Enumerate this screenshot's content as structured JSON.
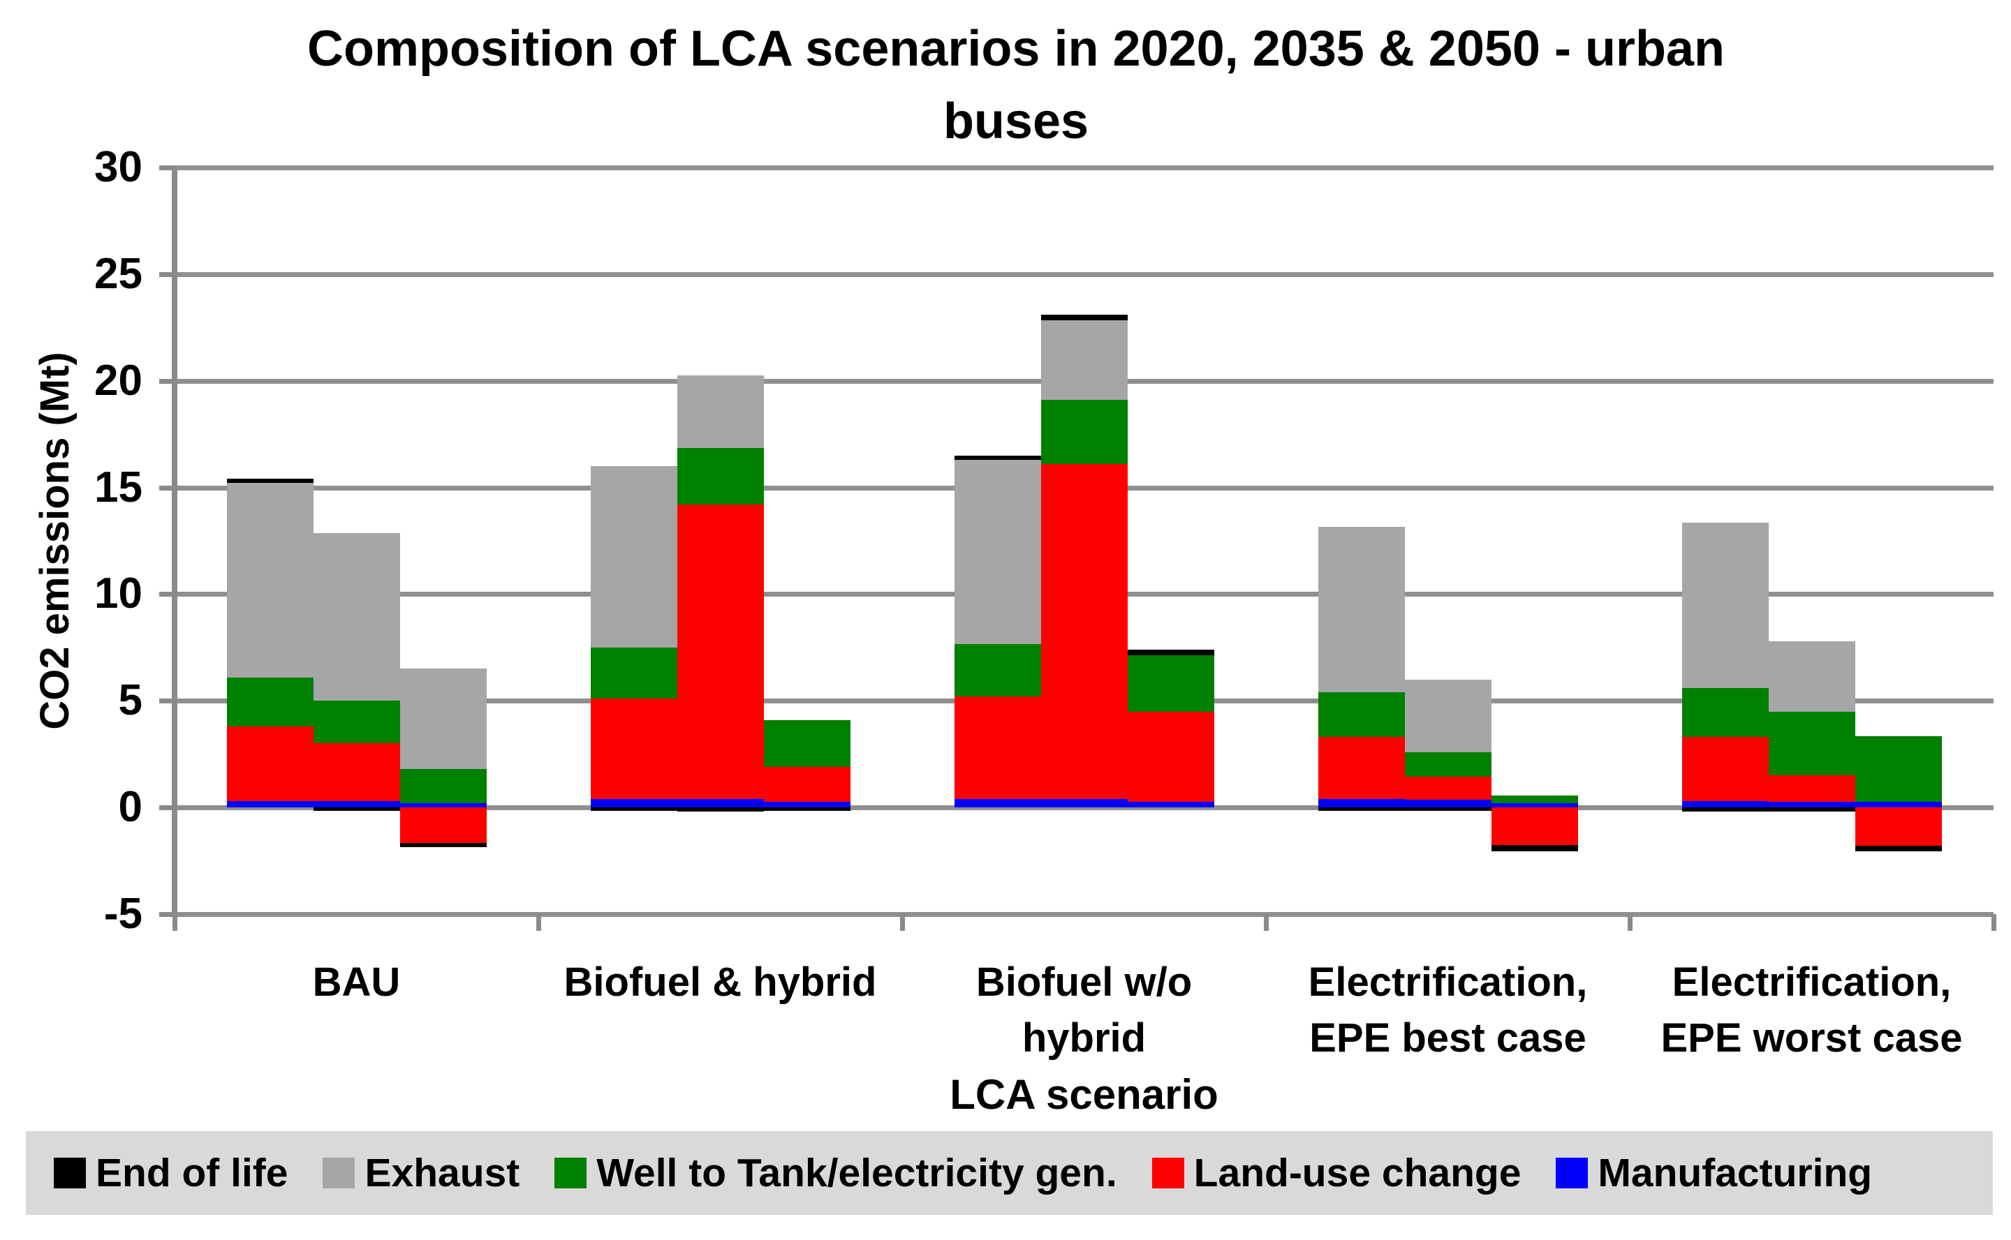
{
  "chart_data": {
    "type": "bar",
    "subtype": "stacked-column",
    "title": "Composition of LCA scenarios in 2020, 2035 & 2050 - urban buses",
    "title_lines": [
      "Composition of LCA scenarios in 2020, 2035 & 2050 - urban",
      "buses"
    ],
    "xlabel": "LCA scenario",
    "ylabel": "CO2 emissions (Mt)",
    "ylim": [
      -5,
      30
    ],
    "ytick_step": 5,
    "ytick_labels": [
      "30",
      "25",
      "20",
      "15",
      "10",
      "5",
      "0",
      "-5"
    ],
    "grid": true,
    "legend_position": "bottom",
    "categories": [
      "BAU",
      "Biofuel & hybrid",
      "Biofuel w/o hybrid",
      "Electrification, EPE best case",
      "Electrification, EPE worst case"
    ],
    "category_label_lines": [
      [
        "BAU"
      ],
      [
        "Biofuel & hybrid"
      ],
      [
        "Biofuel w/o",
        "hybrid"
      ],
      [
        "Electrification,",
        "EPE best case"
      ],
      [
        "Electrification,",
        "EPE worst case"
      ]
    ],
    "bars_per_category": [
      "2020",
      "2035",
      "2050"
    ],
    "stack_order_bottom_to_top": [
      "Manufacturing",
      "Land-use change",
      "Well to Tank/electricity gen.",
      "Exhaust",
      "End of life"
    ],
    "series": [
      {
        "name": "End of life",
        "color": "#000000",
        "values": [
          0.2,
          -0.15,
          -0.2,
          -0.15,
          -0.2,
          -0.15,
          0.2,
          0.25,
          0.25,
          -0.15,
          -0.15,
          -0.3,
          -0.2,
          -0.2,
          -0.25
        ]
      },
      {
        "name": "Exhaust",
        "color": "#a6a6a6",
        "values": [
          9.1,
          7.85,
          4.7,
          8.5,
          3.4,
          0,
          8.65,
          3.75,
          0,
          7.75,
          3.4,
          0,
          7.75,
          3.3,
          0
        ]
      },
      {
        "name": "Well to Tank/electricity gen.",
        "color": "#008000",
        "values": [
          2.3,
          2.0,
          1.6,
          2.4,
          2.65,
          2.2,
          2.45,
          3.0,
          2.65,
          2.1,
          1.15,
          0.35,
          2.3,
          3.0,
          3.1
        ]
      },
      {
        "name": "Land-use change",
        "color": "#ff0000",
        "values": [
          3.5,
          2.7,
          -1.65,
          4.7,
          13.8,
          1.65,
          4.8,
          15.7,
          4.25,
          2.9,
          1.1,
          -1.75,
          3.0,
          1.25,
          -1.8
        ]
      },
      {
        "name": "Manufacturing",
        "color": "#0000ff",
        "values": [
          0.3,
          0.3,
          0.2,
          0.4,
          0.4,
          0.25,
          0.4,
          0.4,
          0.25,
          0.4,
          0.35,
          0.2,
          0.3,
          0.25,
          0.25
        ]
      }
    ],
    "colors": {
      "grid": "#8f8f8f",
      "axis": "#8a8a8a",
      "legend_bg": "#d9d9d9",
      "text": "#000000"
    }
  }
}
